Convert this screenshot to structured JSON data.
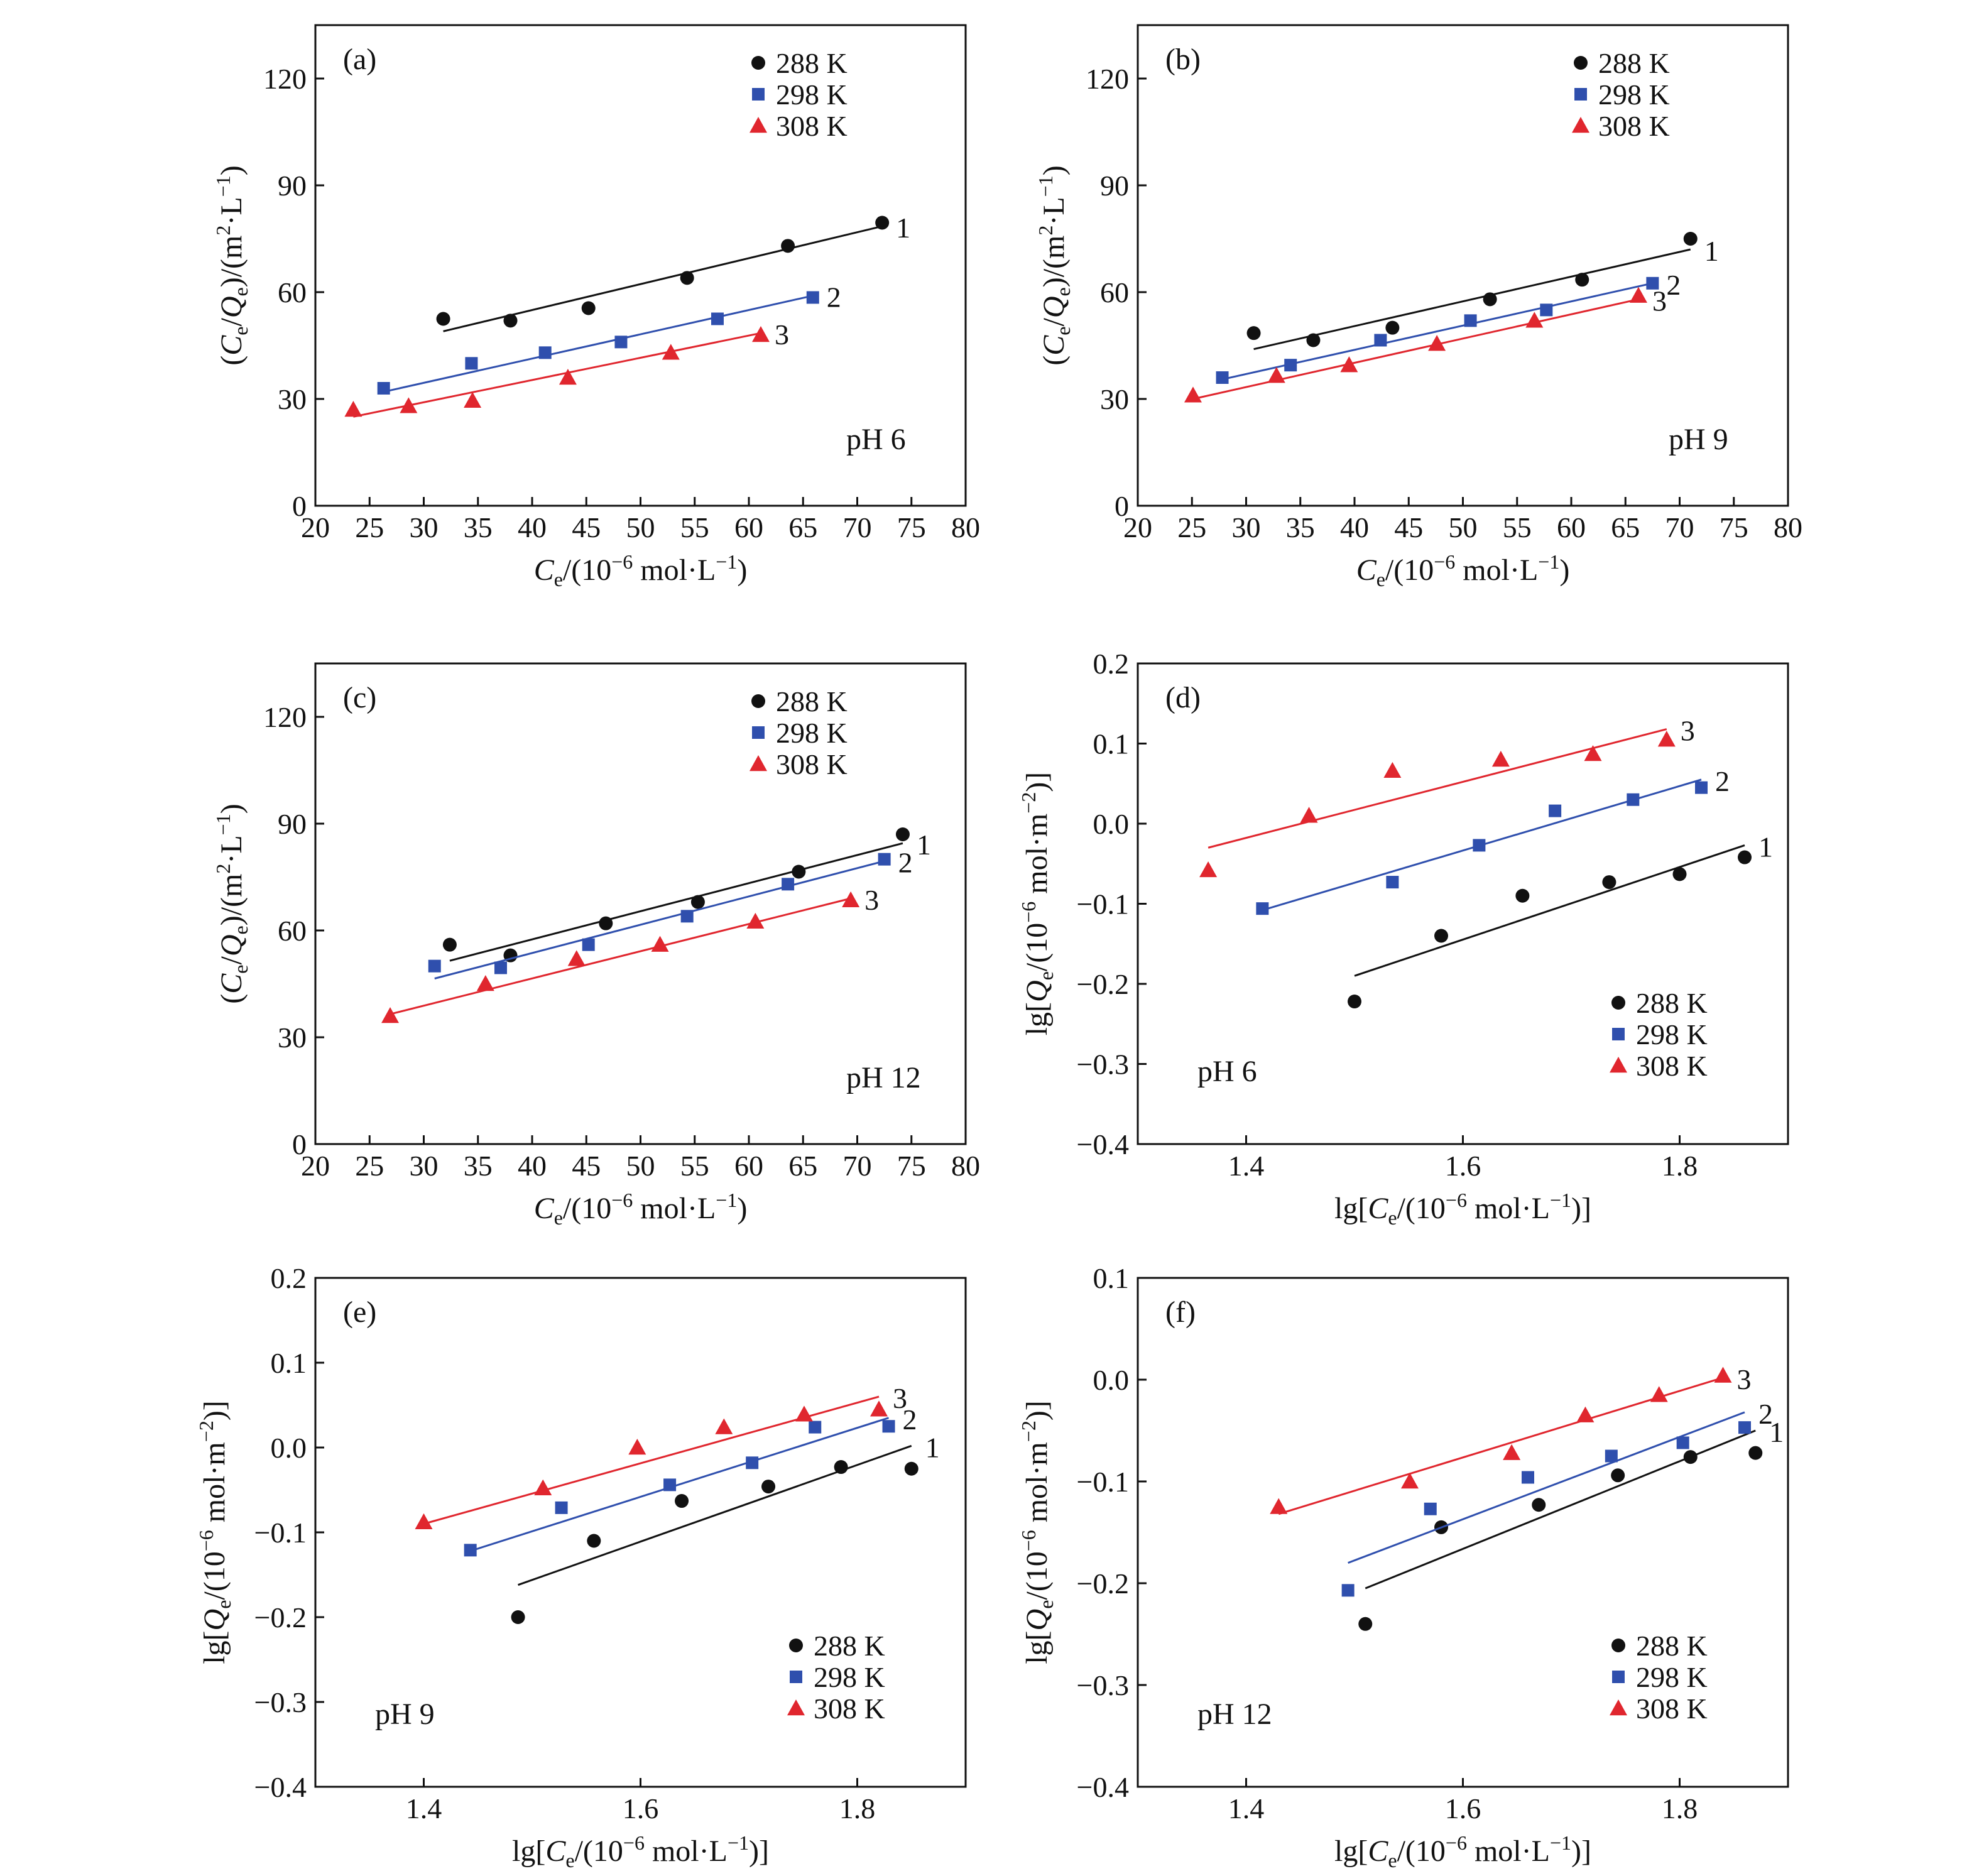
{
  "colors": {
    "288 K": "#111111",
    "298 K": "#2f4fad",
    "308 K": "#e0262e"
  },
  "chart_data": [
    {
      "type": "scatter",
      "panel_label": "(a)",
      "annotation": "pH 6",
      "xlabel": "Ce/(10−6 mol·L−1)",
      "ylabel": "(Ce/Qe)/(m2·L−1)",
      "xlim": [
        20,
        80
      ],
      "ylim": [
        0,
        135
      ],
      "xticks": [
        20,
        25,
        30,
        35,
        40,
        45,
        50,
        55,
        60,
        65,
        70,
        75,
        80
      ],
      "yticks": [
        0,
        30,
        60,
        90,
        120
      ],
      "tick_labels_x": [
        "20",
        "25",
        "30",
        "35",
        "40",
        "45",
        "50",
        "55",
        "60",
        "65",
        "70",
        "75",
        "80"
      ],
      "tick_labels_y": [
        "0",
        "30",
        "60",
        "90",
        "120"
      ],
      "legend": {
        "position": "top-right",
        "entries": [
          "288 K",
          "298 K",
          "308 K"
        ]
      },
      "series": [
        {
          "name": "288 K",
          "marker": "circle",
          "line_label": "1",
          "x": [
            31.8,
            38.0,
            45.2,
            54.3,
            63.6,
            72.3
          ],
          "y": [
            52.5,
            52.0,
            55.5,
            64.0,
            73.0,
            79.5
          ],
          "fit": [
            [
              31.8,
              49.0
            ],
            [
              72.3,
              78.5
            ]
          ]
        },
        {
          "name": "298 K",
          "marker": "square",
          "line_label": "2",
          "x": [
            26.3,
            34.4,
            41.2,
            48.2,
            57.1,
            65.9
          ],
          "y": [
            33.0,
            40.0,
            43.0,
            46.0,
            52.5,
            58.5
          ],
          "fit": [
            [
              26.3,
              32.0
            ],
            [
              65.9,
              59.0
            ]
          ]
        },
        {
          "name": "308 K",
          "marker": "triangle",
          "line_label": "3",
          "x": [
            23.5,
            28.6,
            34.5,
            43.3,
            52.8,
            61.1
          ],
          "y": [
            27.0,
            28.0,
            29.5,
            36.0,
            43.0,
            48.0
          ],
          "fit": [
            [
              23.5,
              25.0
            ],
            [
              61.1,
              48.5
            ]
          ]
        }
      ]
    },
    {
      "type": "scatter",
      "panel_label": "(b)",
      "annotation": "pH 9",
      "xlabel": "Ce/(10−6 mol·L−1)",
      "ylabel": "(Ce/Qe)/(m2·L−1)",
      "xlim": [
        20,
        80
      ],
      "ylim": [
        0,
        135
      ],
      "xticks": [
        20,
        25,
        30,
        35,
        40,
        45,
        50,
        55,
        60,
        65,
        70,
        75,
        80
      ],
      "yticks": [
        0,
        30,
        60,
        90,
        120
      ],
      "tick_labels_x": [
        "20",
        "25",
        "30",
        "35",
        "40",
        "45",
        "50",
        "55",
        "60",
        "65",
        "70",
        "75",
        "80"
      ],
      "tick_labels_y": [
        "0",
        "30",
        "60",
        "90",
        "120"
      ],
      "legend": {
        "position": "top-right",
        "entries": [
          "288 K",
          "298 K",
          "308 K"
        ]
      },
      "series": [
        {
          "name": "288 K",
          "marker": "circle",
          "line_label": "1",
          "x": [
            30.7,
            36.2,
            43.5,
            52.5,
            61.0,
            71.0
          ],
          "y": [
            48.5,
            46.5,
            50.0,
            58.0,
            63.5,
            75.0
          ],
          "fit": [
            [
              30.7,
              44.0
            ],
            [
              71.0,
              72.0
            ]
          ]
        },
        {
          "name": "298 K",
          "marker": "square",
          "line_label": "2",
          "x": [
            27.8,
            34.1,
            42.4,
            50.7,
            57.7,
            67.5
          ],
          "y": [
            36.0,
            39.5,
            46.5,
            52.0,
            55.0,
            62.5
          ],
          "fit": [
            [
              27.8,
              35.5
            ],
            [
              67.5,
              62.5
            ]
          ]
        },
        {
          "name": "308 K",
          "marker": "triangle",
          "line_label": "3",
          "x": [
            25.1,
            32.8,
            39.5,
            47.6,
            56.6,
            66.2
          ],
          "y": [
            31.0,
            36.5,
            39.5,
            45.5,
            52.0,
            59.0
          ],
          "fit": [
            [
              25.1,
              30.0
            ],
            [
              66.2,
              58.0
            ]
          ]
        }
      ]
    },
    {
      "type": "scatter",
      "panel_label": "(c)",
      "annotation": "pH 12",
      "xlabel": "Ce/(10−6 mol·L−1)",
      "ylabel": "(Ce/Qe)/(m2·L−1)",
      "xlim": [
        20,
        80
      ],
      "ylim": [
        0,
        135
      ],
      "xticks": [
        20,
        25,
        30,
        35,
        40,
        45,
        50,
        55,
        60,
        65,
        70,
        75,
        80
      ],
      "yticks": [
        0,
        30,
        60,
        90,
        120
      ],
      "tick_labels_x": [
        "20",
        "25",
        "30",
        "35",
        "40",
        "45",
        "50",
        "55",
        "60",
        "65",
        "70",
        "75",
        "80"
      ],
      "tick_labels_y": [
        "0",
        "30",
        "60",
        "90",
        "120"
      ],
      "legend": {
        "position": "top-right",
        "entries": [
          "288 K",
          "298 K",
          "308 K"
        ]
      },
      "series": [
        {
          "name": "288 K",
          "marker": "circle",
          "line_label": "1",
          "x": [
            32.4,
            38.0,
            46.8,
            55.3,
            64.6,
            74.2
          ],
          "y": [
            56.0,
            53.0,
            62.0,
            68.0,
            76.5,
            87.0
          ],
          "fit": [
            [
              32.4,
              51.5
            ],
            [
              74.2,
              84.5
            ]
          ]
        },
        {
          "name": "298 K",
          "marker": "square",
          "line_label": "2",
          "x": [
            31.0,
            37.1,
            45.2,
            54.3,
            63.6,
            72.5
          ],
          "y": [
            50.0,
            49.5,
            56.0,
            64.0,
            73.0,
            80.0
          ],
          "fit": [
            [
              31.0,
              46.5
            ],
            [
              72.5,
              79.5
            ]
          ]
        },
        {
          "name": "308 K",
          "marker": "triangle",
          "line_label": "3",
          "x": [
            26.9,
            35.7,
            44.1,
            51.8,
            60.6,
            69.4
          ],
          "y": [
            36.0,
            45.0,
            52.0,
            56.0,
            62.5,
            68.5
          ],
          "fit": [
            [
              26.9,
              36.5
            ],
            [
              69.4,
              69.0
            ]
          ]
        }
      ]
    },
    {
      "type": "scatter",
      "panel_label": "(d)",
      "annotation": "pH 6",
      "xlabel": "lg[Ce/(10−6 mol·L−1)]",
      "ylabel": "lg[Qe/(10−6 mol·m−2)]",
      "xlim": [
        1.3,
        1.9
      ],
      "ylim": [
        -0.4,
        0.2
      ],
      "xticks": [
        1.4,
        1.6,
        1.8
      ],
      "yticks": [
        -0.4,
        -0.3,
        -0.2,
        -0.1,
        0.0,
        0.1,
        0.2
      ],
      "tick_labels_x": [
        "1.4",
        "1.6",
        "1.8"
      ],
      "tick_labels_y": [
        "−0.4",
        "−0.3",
        "−0.2",
        "−0.1",
        "0.0",
        "0.1",
        "0.2"
      ],
      "legend": {
        "position": "bottom-right",
        "entries": [
          "288 K",
          "298 K",
          "308 K"
        ]
      },
      "series": [
        {
          "name": "288 K",
          "marker": "circle",
          "line_label": "1",
          "x": [
            1.5,
            1.58,
            1.655,
            1.735,
            1.8,
            1.86
          ],
          "y": [
            -0.222,
            -0.14,
            -0.09,
            -0.073,
            -0.063,
            -0.042
          ],
          "fit": [
            [
              1.5,
              -0.19
            ],
            [
              1.86,
              -0.027
            ]
          ]
        },
        {
          "name": "298 K",
          "marker": "square",
          "line_label": "2",
          "x": [
            1.415,
            1.535,
            1.615,
            1.685,
            1.757,
            1.82
          ],
          "y": [
            -0.106,
            -0.073,
            -0.027,
            0.016,
            0.03,
            0.045
          ],
          "fit": [
            [
              1.415,
              -0.108
            ],
            [
              1.82,
              0.055
            ]
          ]
        },
        {
          "name": "308 K",
          "marker": "triangle",
          "line_label": "3",
          "x": [
            1.365,
            1.458,
            1.535,
            1.635,
            1.72,
            1.788
          ],
          "y": [
            -0.058,
            0.01,
            0.066,
            0.08,
            0.087,
            0.105
          ],
          "fit": [
            [
              1.365,
              -0.03
            ],
            [
              1.788,
              0.118
            ]
          ]
        }
      ]
    },
    {
      "type": "scatter",
      "panel_label": "(e)",
      "annotation": "pH 9",
      "xlabel": "lg[Ce/(10−6 mol·L−1)]",
      "ylabel": "lg[Qe/(10−6 mol·m−2)]",
      "xlim": [
        1.3,
        1.9
      ],
      "ylim": [
        -0.4,
        0.2
      ],
      "xticks": [
        1.4,
        1.6,
        1.8
      ],
      "yticks": [
        -0.4,
        -0.3,
        -0.2,
        -0.1,
        0.0,
        0.1,
        0.2
      ],
      "tick_labels_x": [
        "1.4",
        "1.6",
        "1.8"
      ],
      "tick_labels_y": [
        "−0.4",
        "−0.3",
        "−0.2",
        "−0.1",
        "0.0",
        "0.1",
        "0.2"
      ],
      "legend": {
        "position": "bottom-right",
        "entries": [
          "288 K",
          "298 K",
          "308 K"
        ]
      },
      "series": [
        {
          "name": "288 K",
          "marker": "circle",
          "line_label": "1",
          "x": [
            1.487,
            1.557,
            1.638,
            1.718,
            1.785,
            1.85
          ],
          "y": [
            -0.2,
            -0.11,
            -0.063,
            -0.046,
            -0.023,
            -0.025
          ],
          "fit": [
            [
              1.487,
              -0.162
            ],
            [
              1.85,
              0.002
            ]
          ]
        },
        {
          "name": "298 K",
          "marker": "square",
          "line_label": "2",
          "x": [
            1.443,
            1.527,
            1.627,
            1.703,
            1.761,
            1.829
          ],
          "y": [
            -0.121,
            -0.071,
            -0.044,
            -0.018,
            0.024,
            0.025
          ],
          "fit": [
            [
              1.443,
              -0.122
            ],
            [
              1.829,
              0.035
            ]
          ]
        },
        {
          "name": "308 K",
          "marker": "triangle",
          "line_label": "3",
          "x": [
            1.4,
            1.51,
            1.597,
            1.677,
            1.751,
            1.82
          ],
          "y": [
            -0.088,
            -0.048,
            0.0,
            0.024,
            0.039,
            0.045
          ],
          "fit": [
            [
              1.4,
              -0.09
            ],
            [
              1.82,
              0.06
            ]
          ]
        }
      ]
    },
    {
      "type": "scatter",
      "panel_label": "(f)",
      "annotation": "pH 12",
      "xlabel": "lg[Ce/(10−6 mol·L−1)]",
      "ylabel": "lg[Qe/(10−6 mol·m−2)]",
      "xlim": [
        1.3,
        1.9
      ],
      "ylim": [
        -0.4,
        0.1
      ],
      "xticks": [
        1.4,
        1.6,
        1.8
      ],
      "yticks": [
        -0.4,
        -0.3,
        -0.2,
        -0.1,
        0.0,
        0.1
      ],
      "tick_labels_x": [
        "1.4",
        "1.6",
        "1.8"
      ],
      "tick_labels_y": [
        "−0.4",
        "−0.3",
        "−0.2",
        "−0.1",
        "0.0",
        "0.1"
      ],
      "legend": {
        "position": "bottom-right",
        "entries": [
          "288 K",
          "298 K",
          "308 K"
        ]
      },
      "series": [
        {
          "name": "288 K",
          "marker": "circle",
          "line_label": "1",
          "x": [
            1.51,
            1.58,
            1.67,
            1.743,
            1.81,
            1.87
          ],
          "y": [
            -0.24,
            -0.145,
            -0.123,
            -0.094,
            -0.076,
            -0.072
          ],
          "fit": [
            [
              1.51,
              -0.205
            ],
            [
              1.87,
              -0.05
            ]
          ]
        },
        {
          "name": "298 K",
          "marker": "square",
          "line_label": "2",
          "x": [
            1.494,
            1.57,
            1.66,
            1.737,
            1.803,
            1.86
          ],
          "y": [
            -0.207,
            -0.127,
            -0.096,
            -0.075,
            -0.062,
            -0.047
          ],
          "fit": [
            [
              1.494,
              -0.18
            ],
            [
              1.86,
              -0.032
            ]
          ]
        },
        {
          "name": "308 K",
          "marker": "triangle",
          "line_label": "3",
          "x": [
            1.43,
            1.551,
            1.645,
            1.713,
            1.781,
            1.84
          ],
          "y": [
            -0.125,
            -0.1,
            -0.072,
            -0.035,
            -0.015,
            0.004
          ],
          "fit": [
            [
              1.43,
              -0.132
            ],
            [
              1.84,
              0.002
            ]
          ]
        }
      ]
    }
  ]
}
